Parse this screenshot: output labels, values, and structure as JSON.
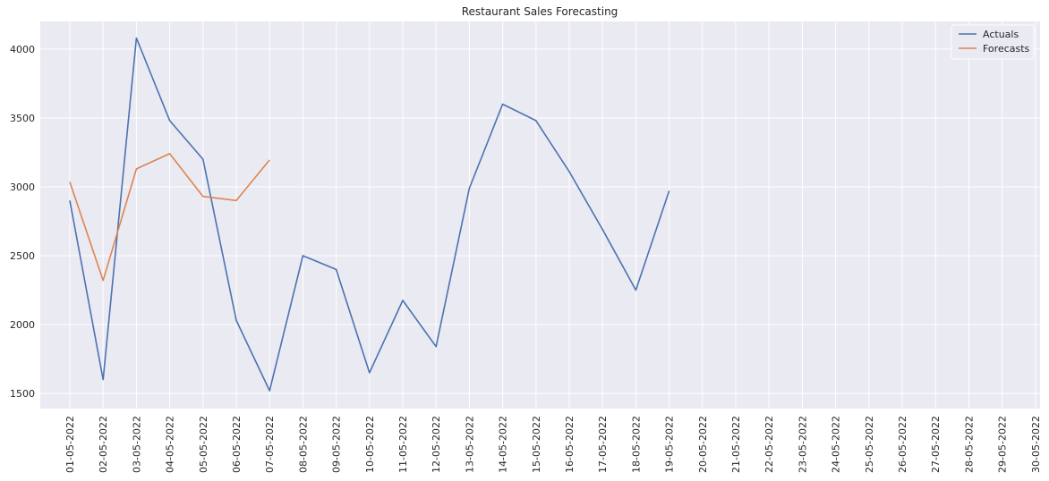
{
  "chart_data": {
    "type": "line",
    "title": "Restaurant Sales Forecasting",
    "xlabel": "",
    "ylabel": "",
    "x": [
      "01-05-2022",
      "02-05-2022",
      "03-05-2022",
      "04-05-2022",
      "05-05-2022",
      "06-05-2022",
      "07-05-2022",
      "08-05-2022",
      "09-05-2022",
      "10-05-2022",
      "11-05-2022",
      "12-05-2022",
      "13-05-2022",
      "14-05-2022",
      "15-05-2022",
      "16-05-2022",
      "17-05-2022",
      "18-05-2022",
      "19-05-2022",
      "20-05-2022",
      "21-05-2022",
      "22-05-2022",
      "23-05-2022",
      "24-05-2022",
      "25-05-2022",
      "26-05-2022",
      "27-05-2022",
      "28-05-2022",
      "29-05-2022",
      "30-05-2022"
    ],
    "yticks": [
      1500,
      2000,
      2500,
      3000,
      3500,
      4000
    ],
    "ylim": [
      1390,
      4200
    ],
    "grid": true,
    "legend_position": "top-right",
    "series": [
      {
        "name": "Actuals",
        "color": "#4c72b0",
        "values": [
          2900,
          1600,
          4080,
          3480,
          3200,
          2030,
          1520,
          2500,
          2400,
          1650,
          2175,
          1840,
          2990,
          3600,
          3480,
          3110,
          2690,
          2250,
          2970,
          null,
          null,
          null,
          null,
          null,
          null,
          null,
          null,
          null,
          null,
          null
        ]
      },
      {
        "name": "Forecasts",
        "color": "#dd8452",
        "values": [
          3035,
          2320,
          3130,
          3240,
          2930,
          2900,
          3195,
          null,
          null,
          null,
          null,
          null,
          null,
          null,
          null,
          null,
          null,
          null,
          null,
          null,
          null,
          null,
          null,
          null,
          null,
          null,
          null,
          null,
          null,
          null
        ]
      }
    ]
  }
}
